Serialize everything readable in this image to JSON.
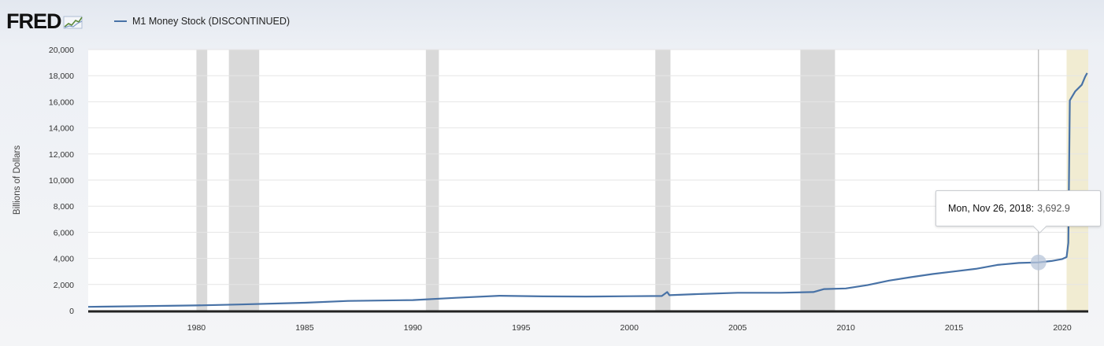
{
  "logo": {
    "text": "FRED",
    "icon": "line-graph-icon"
  },
  "legend": {
    "label": "M1 Money Stock (DISCONTINUED)",
    "color": "#4872a6"
  },
  "tooltip": {
    "date": "Mon, Nov 26, 2018:",
    "value": "3,692.9"
  },
  "colors": {
    "line": "#4872a6",
    "recession": "#d9d9d9",
    "highlight": "#f1ecd2",
    "axis": "#222222",
    "grid": "#e6e6e6",
    "hover_marker": "#b8c6da"
  },
  "chart_data": {
    "type": "line",
    "title": "",
    "xlabel": "",
    "ylabel": "Billions of Dollars",
    "xlim": [
      1975.0,
      2021.2
    ],
    "ylim": [
      0,
      20000
    ],
    "grid": true,
    "legend_position": "top-left",
    "x_ticks": [
      {
        "label": "1980",
        "value": 1980
      },
      {
        "label": "1985",
        "value": 1985
      },
      {
        "label": "1990",
        "value": 1990
      },
      {
        "label": "1995",
        "value": 1995
      },
      {
        "label": "2000",
        "value": 2000
      },
      {
        "label": "2005",
        "value": 2005
      },
      {
        "label": "2010",
        "value": 2010
      },
      {
        "label": "2015",
        "value": 2015
      },
      {
        "label": "2020",
        "value": 2020
      }
    ],
    "y_ticks": [
      {
        "label": "0",
        "value": 0
      },
      {
        "label": "2,000",
        "value": 2000
      },
      {
        "label": "4,000",
        "value": 4000
      },
      {
        "label": "6,000",
        "value": 6000
      },
      {
        "label": "8,000",
        "value": 8000
      },
      {
        "label": "10,000",
        "value": 10000
      },
      {
        "label": "12,000",
        "value": 12000
      },
      {
        "label": "14,000",
        "value": 14000
      },
      {
        "label": "16,000",
        "value": 16000
      },
      {
        "label": "18,000",
        "value": 18000
      },
      {
        "label": "20,000",
        "value": 20000
      }
    ],
    "recessions": [
      [
        1980.0,
        1980.5
      ],
      [
        1981.5,
        1982.9
      ],
      [
        1990.6,
        1991.2
      ],
      [
        2001.2,
        2001.9
      ],
      [
        2007.9,
        2009.5
      ]
    ],
    "highlight_band": [
      2020.2,
      2021.2
    ],
    "hover": {
      "x": 2018.9,
      "y": 3692.9
    },
    "series": [
      {
        "name": "M1 Money Stock (DISCONTINUED)",
        "points": [
          [
            1975.0,
            290
          ],
          [
            1977.0,
            330
          ],
          [
            1980.0,
            400
          ],
          [
            1982.0,
            470
          ],
          [
            1985.0,
            600
          ],
          [
            1987.0,
            740
          ],
          [
            1990.0,
            810
          ],
          [
            1992.0,
            980
          ],
          [
            1994.0,
            1140
          ],
          [
            1996.0,
            1090
          ],
          [
            1998.0,
            1080
          ],
          [
            2000.0,
            1100
          ],
          [
            2001.5,
            1120
          ],
          [
            2001.75,
            1420
          ],
          [
            2001.85,
            1180
          ],
          [
            2003.0,
            1260
          ],
          [
            2005.0,
            1370
          ],
          [
            2007.0,
            1370
          ],
          [
            2008.5,
            1420
          ],
          [
            2009.0,
            1650
          ],
          [
            2010.0,
            1700
          ],
          [
            2011.0,
            1950
          ],
          [
            2012.0,
            2300
          ],
          [
            2013.0,
            2560
          ],
          [
            2014.0,
            2800
          ],
          [
            2015.0,
            3000
          ],
          [
            2016.0,
            3200
          ],
          [
            2017.0,
            3500
          ],
          [
            2018.0,
            3650
          ],
          [
            2018.9,
            3692.9
          ],
          [
            2019.5,
            3800
          ],
          [
            2020.0,
            3950
          ],
          [
            2020.2,
            4100
          ],
          [
            2020.28,
            5200
          ],
          [
            2020.35,
            16100
          ],
          [
            2020.6,
            16800
          ],
          [
            2020.9,
            17300
          ],
          [
            2021.05,
            17900
          ],
          [
            2021.15,
            18200
          ]
        ]
      }
    ]
  }
}
